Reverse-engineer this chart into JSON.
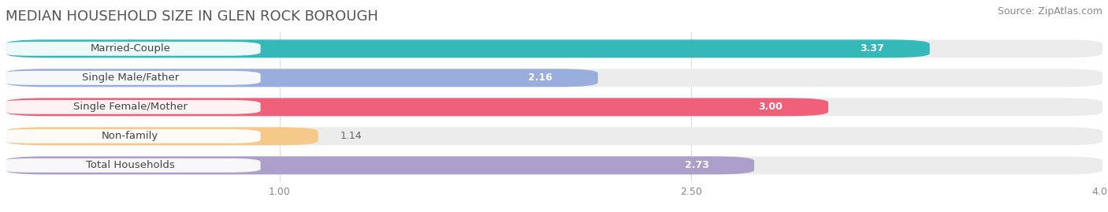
{
  "title": "MEDIAN HOUSEHOLD SIZE IN GLEN ROCK BOROUGH",
  "source": "Source: ZipAtlas.com",
  "categories": [
    "Married-Couple",
    "Single Male/Father",
    "Single Female/Mother",
    "Non-family",
    "Total Households"
  ],
  "values": [
    3.37,
    2.16,
    3.0,
    1.14,
    2.73
  ],
  "bar_colors": [
    "#35b8b8",
    "#9aaede",
    "#f0607a",
    "#f5c98a",
    "#ac9fcc"
  ],
  "xmin": 0,
  "xmax": 4.0,
  "xticks": [
    1.0,
    2.5,
    4.0
  ],
  "title_fontsize": 13,
  "source_fontsize": 9,
  "label_fontsize": 9.5,
  "value_fontsize": 9,
  "background_color": "#ffffff",
  "bar_bg_color": "#ececec"
}
